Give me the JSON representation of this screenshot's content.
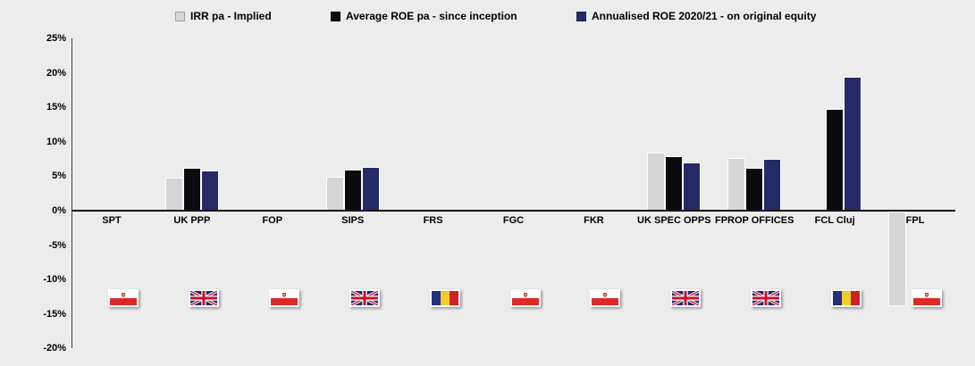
{
  "chart_data": {
    "type": "bar",
    "title": "",
    "xlabel": "",
    "ylabel": "",
    "ylim": [
      -20,
      25
    ],
    "grid": false,
    "legend_position": "top",
    "background_color": "#ececec",
    "categories": [
      "SPT",
      "UK PPP",
      "FOP",
      "SIPS",
      "FRS",
      "FGC",
      "FKR",
      "UK SPEC OPPS",
      "FPROP OFFICES",
      "FCL Cluj",
      "FPL"
    ],
    "category_countries": [
      "poland",
      "uk",
      "poland",
      "uk",
      "romania",
      "poland",
      "poland",
      "uk",
      "uk",
      "romania",
      "poland"
    ],
    "y_ticks": [
      "25%",
      "20%",
      "15%",
      "10%",
      "5%",
      "0%",
      "-5%",
      "-10%",
      "-15%",
      "-20%"
    ],
    "y_tick_values": [
      25,
      20,
      15,
      10,
      5,
      0,
      -5,
      -10,
      -15,
      -20
    ],
    "series": [
      {
        "name": "IRR pa - Implied",
        "color": "#d6d6d6",
        "values": [
          0,
          4.8,
          0,
          4.9,
          0,
          0,
          0,
          8.4,
          7.6,
          0,
          -13.8
        ]
      },
      {
        "name": "Average ROE pa - since inception",
        "color": "#0a0a0f",
        "values": [
          0,
          6.2,
          0,
          6.0,
          0,
          0,
          0,
          7.9,
          6.2,
          14.8,
          0
        ]
      },
      {
        "name": "Annualised ROE 2020/21 - on original equity",
        "color": "#262a66",
        "values": [
          0,
          5.8,
          0,
          6.4,
          0,
          0,
          0,
          7.0,
          7.5,
          19.4,
          0
        ]
      }
    ],
    "flag_colors": {
      "poland_white": "#ffffff",
      "poland_red": "#dc2b27",
      "uk_blue": "#1c2b6b",
      "uk_red": "#c8102e",
      "romania_blue": "#22307f",
      "romania_yellow": "#efce28",
      "romania_red": "#cf2027"
    }
  }
}
